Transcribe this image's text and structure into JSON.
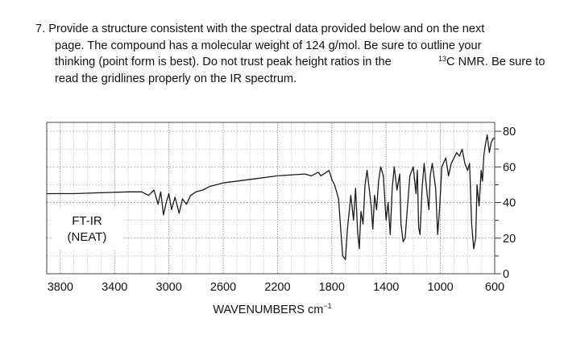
{
  "question": {
    "number": "7.",
    "lines": [
      "Provide a structure consistent with the spectral data provided below and on the next",
      "page. The compound has a molecular weight of 124 g/mol. Be sure to outline your",
      "thinking (point form is best). Do not trust peak height ratios in the",
      "C NMR. Be sure to",
      "read the gridlines properly on the IR spectrum."
    ],
    "superscript": "13"
  },
  "chart_data": {
    "type": "line",
    "label_lines": [
      "FT-IR",
      "(NEAT)"
    ],
    "xlabel": "WAVENUMBERS cm",
    "xlabel_sup": "−1",
    "x_ticks": [
      3800,
      3400,
      3000,
      2600,
      2200,
      1800,
      1400,
      1000,
      600
    ],
    "y_ticks": [
      0,
      20,
      40,
      60,
      80
    ],
    "xlim": [
      3900,
      600
    ],
    "ylim": [
      0,
      85
    ],
    "grid": true,
    "series": [
      {
        "points": [
          [
            3900,
            45
          ],
          [
            3700,
            45
          ],
          [
            3500,
            45.5
          ],
          [
            3300,
            46
          ],
          [
            3200,
            46
          ],
          [
            3150,
            44
          ],
          [
            3110,
            47
          ],
          [
            3080,
            39
          ],
          [
            3060,
            46
          ],
          [
            3040,
            33
          ],
          [
            3020,
            40
          ],
          [
            3000,
            45
          ],
          [
            2980,
            36
          ],
          [
            2955,
            43
          ],
          [
            2925,
            34
          ],
          [
            2900,
            42
          ],
          [
            2870,
            39
          ],
          [
            2840,
            44
          ],
          [
            2800,
            46
          ],
          [
            2750,
            47
          ],
          [
            2700,
            49
          ],
          [
            2600,
            51
          ],
          [
            2400,
            53
          ],
          [
            2200,
            55
          ],
          [
            2000,
            56
          ],
          [
            1950,
            55
          ],
          [
            1900,
            57
          ],
          [
            1880,
            55
          ],
          [
            1820,
            58
          ],
          [
            1800,
            53
          ],
          [
            1780,
            50
          ],
          [
            1750,
            42
          ],
          [
            1720,
            10
          ],
          [
            1700,
            8
          ],
          [
            1685,
            25
          ],
          [
            1660,
            44
          ],
          [
            1640,
            30
          ],
          [
            1625,
            48
          ],
          [
            1610,
            24
          ],
          [
            1598,
            14
          ],
          [
            1585,
            35
          ],
          [
            1570,
            28
          ],
          [
            1555,
            50
          ],
          [
            1540,
            58
          ],
          [
            1510,
            38
          ],
          [
            1498,
            25
          ],
          [
            1485,
            44
          ],
          [
            1470,
            36
          ],
          [
            1455,
            52
          ],
          [
            1440,
            60
          ],
          [
            1420,
            55
          ],
          [
            1400,
            30
          ],
          [
            1385,
            40
          ],
          [
            1370,
            22
          ],
          [
            1355,
            48
          ],
          [
            1340,
            60
          ],
          [
            1320,
            47
          ],
          [
            1300,
            56
          ],
          [
            1290,
            28
          ],
          [
            1275,
            18
          ],
          [
            1260,
            20
          ],
          [
            1245,
            35
          ],
          [
            1225,
            55
          ],
          [
            1200,
            60
          ],
          [
            1180,
            45
          ],
          [
            1170,
            58
          ],
          [
            1160,
            26
          ],
          [
            1150,
            22
          ],
          [
            1135,
            48
          ],
          [
            1120,
            62
          ],
          [
            1100,
            46
          ],
          [
            1085,
            36
          ],
          [
            1075,
            55
          ],
          [
            1060,
            62
          ],
          [
            1035,
            48
          ],
          [
            1020,
            22
          ],
          [
            1005,
            38
          ],
          [
            990,
            60
          ],
          [
            960,
            65
          ],
          [
            940,
            55
          ],
          [
            920,
            62
          ],
          [
            880,
            68
          ],
          [
            860,
            66
          ],
          [
            840,
            70
          ],
          [
            820,
            62
          ],
          [
            800,
            58
          ],
          [
            785,
            62
          ],
          [
            770,
            28
          ],
          [
            755,
            14
          ],
          [
            740,
            20
          ],
          [
            730,
            50
          ],
          [
            715,
            38
          ],
          [
            700,
            58
          ],
          [
            690,
            52
          ],
          [
            680,
            66
          ],
          [
            670,
            72
          ],
          [
            655,
            78
          ],
          [
            640,
            68
          ],
          [
            625,
            74
          ],
          [
            610,
            76
          ],
          [
            600,
            76
          ]
        ]
      }
    ]
  }
}
